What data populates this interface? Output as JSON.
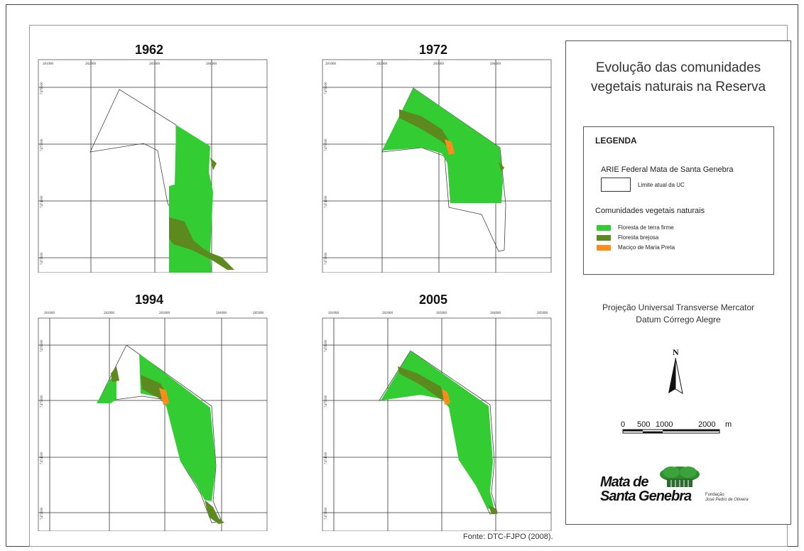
{
  "maps": [
    {
      "year": "1962",
      "x_ticks": [
        "281000",
        "282000",
        "283000",
        "284000"
      ],
      "y_ticks": [
        "7476000",
        "7475000",
        "7474000",
        "7473000"
      ]
    },
    {
      "year": "1972",
      "x_ticks": [
        "281000",
        "282000",
        "283000",
        "284000"
      ],
      "y_ticks": [
        "7476000",
        "7475000",
        "7474000",
        "7473000"
      ]
    },
    {
      "year": "1994",
      "x_ticks": [
        "281000",
        "282000",
        "283000",
        "284000",
        "285000"
      ],
      "y_ticks": [
        "7476000",
        "7475000",
        "7474000",
        "7473000"
      ]
    },
    {
      "year": "2005",
      "x_ticks": [
        "281000",
        "282000",
        "283000",
        "284000",
        "285000"
      ],
      "y_ticks": [
        "7476000",
        "7475000",
        "7474000",
        "7473000"
      ]
    }
  ],
  "panel": {
    "title_line1": "Evolução das comunidades",
    "title_line2": "vegetais naturais na Reserva",
    "legend": {
      "title": "LEGENDA",
      "arie_label": "ARIE Federal Mata de Santa Genebra",
      "boundary_label": "Limite atual da UC",
      "communities_label": "Comunidades vegetais naturais",
      "items": [
        {
          "label": "Floresta de terra firme",
          "color": "#33cc33"
        },
        {
          "label": "Floresta brejosa",
          "color": "#5c8a1e"
        },
        {
          "label": "Maciço de Maria Preta",
          "color": "#ff8c1a"
        }
      ]
    },
    "projection_line1": "Projeção Universal Transverse Mercator",
    "projection_line2": "Datum Córrego Alegre",
    "north_label": "N",
    "scale": {
      "ticks": [
        "0",
        "500",
        "1000",
        "2000"
      ],
      "unit": "m"
    },
    "logo": {
      "line1": "Mata de",
      "line2": "Santa Genebra",
      "sub1": "Fundação",
      "sub2": "José Pedro de Oliveira"
    }
  },
  "source": "Fonte: DTC-FJPO (2008)."
}
